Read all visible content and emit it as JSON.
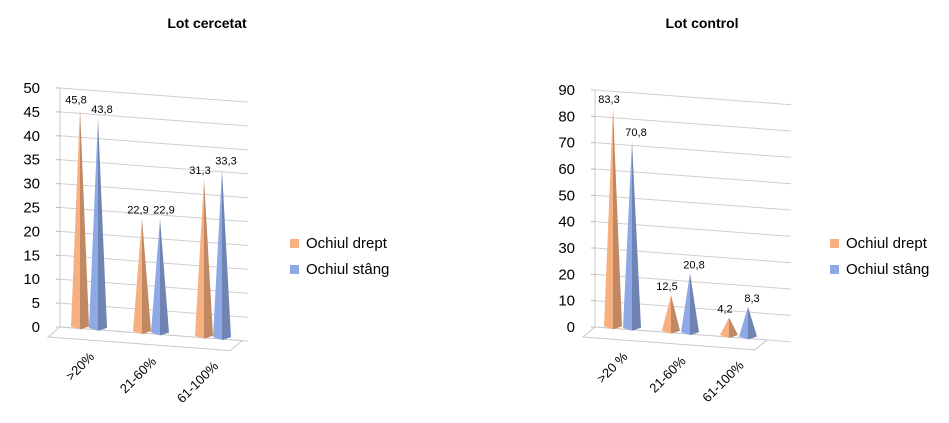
{
  "chart_data": [
    {
      "type": "bar",
      "style": "3d-cone",
      "title": "Lot cercetat",
      "categories": [
        ">20%",
        "21-60%",
        "61-100%"
      ],
      "series": [
        {
          "name": "Ochiul drept",
          "values": [
            45.8,
            22.9,
            31.3
          ],
          "labels": [
            "45,8",
            "22,9",
            "31,3"
          ],
          "color": "#F7B07F"
        },
        {
          "name": "Ochiul stâng",
          "values": [
            43.8,
            22.9,
            33.3
          ],
          "labels": [
            "43,8",
            "22,9",
            "33,3"
          ],
          "color": "#8EA9E6"
        }
      ],
      "ylim": [
        0,
        50
      ],
      "yticks": [
        0,
        5,
        10,
        15,
        20,
        25,
        30,
        35,
        40,
        45,
        50
      ],
      "grid": true,
      "legend": "right"
    },
    {
      "type": "bar",
      "style": "3d-cone",
      "title": "Lot control",
      "categories": [
        ">20 %",
        "21-60%",
        "61-100%"
      ],
      "series": [
        {
          "name": "Ochiul drept",
          "values": [
            83.3,
            12.5,
            4.2
          ],
          "labels": [
            "83,3",
            "12,5",
            "4,2"
          ],
          "color": "#F7B07F"
        },
        {
          "name": "Ochiul stâng",
          "values": [
            70.8,
            20.8,
            8.3
          ],
          "labels": [
            "70,8",
            "20,8",
            "8,3"
          ],
          "color": "#8EA9E6"
        }
      ],
      "ylim": [
        0,
        90
      ],
      "yticks": [
        0,
        10,
        20,
        30,
        40,
        50,
        60,
        70,
        80,
        90
      ],
      "grid": true,
      "legend": "right"
    }
  ]
}
